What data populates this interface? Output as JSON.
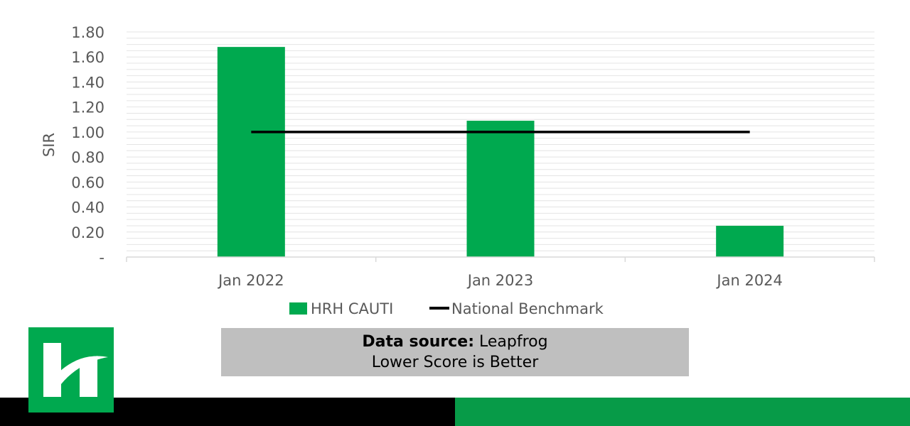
{
  "chart_data": {
    "type": "bar",
    "categories": [
      "Jan 2022",
      "Jan 2023",
      "Jan 2024"
    ],
    "series": [
      {
        "name": "HRH CAUTI",
        "type": "bar",
        "color": "#00a94f",
        "values": [
          1.68,
          1.09,
          0.25
        ]
      },
      {
        "name": "National Benchmark",
        "type": "line",
        "color": "#000000",
        "values": [
          1.0,
          1.0,
          1.0
        ]
      }
    ],
    "ylabel": "SIR",
    "xlabel": "",
    "ylim": [
      0,
      1.8
    ],
    "yticks": [
      0,
      0.2,
      0.4,
      0.6,
      0.8,
      1.0,
      1.2,
      1.4,
      1.6,
      1.8
    ],
    "ytick_labels": [
      "-",
      "0.20",
      "0.40",
      "0.60",
      "0.80",
      "1.00",
      "1.20",
      "1.40",
      "1.60",
      "1.80"
    ],
    "grid": true,
    "legend_position": "bottom"
  },
  "source": {
    "label": "Data source:",
    "value": "Leapfrog",
    "note": "Lower Score is Better"
  },
  "colors": {
    "bar": "#00a94f",
    "benchmark": "#000000",
    "footer_left": "#000000",
    "footer_right": "#079b48",
    "logo_bg": "#00a94f",
    "source_bg": "#bfbfbf"
  },
  "logo": {
    "icon": "hospital-h-logo-icon"
  }
}
